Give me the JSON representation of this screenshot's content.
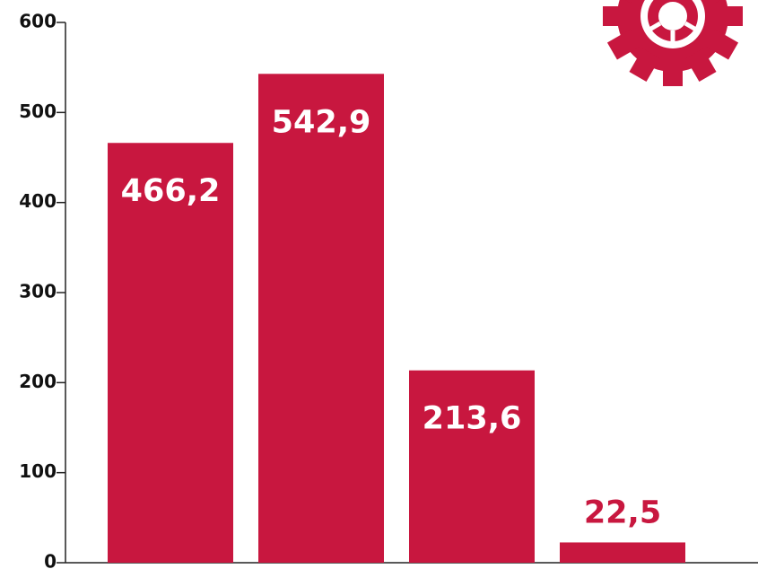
{
  "chart_data": {
    "type": "bar",
    "categories": [
      null,
      null,
      null,
      null
    ],
    "values": [
      466.2,
      542.9,
      213.6,
      22.5
    ],
    "value_labels": [
      "466,2",
      "542,9",
      "213,6",
      "22,5"
    ],
    "color": "#c8173f",
    "ylim": [
      0,
      600
    ],
    "yticks": [
      0,
      100,
      200,
      300,
      400,
      500,
      600
    ],
    "grid": false
  }
}
